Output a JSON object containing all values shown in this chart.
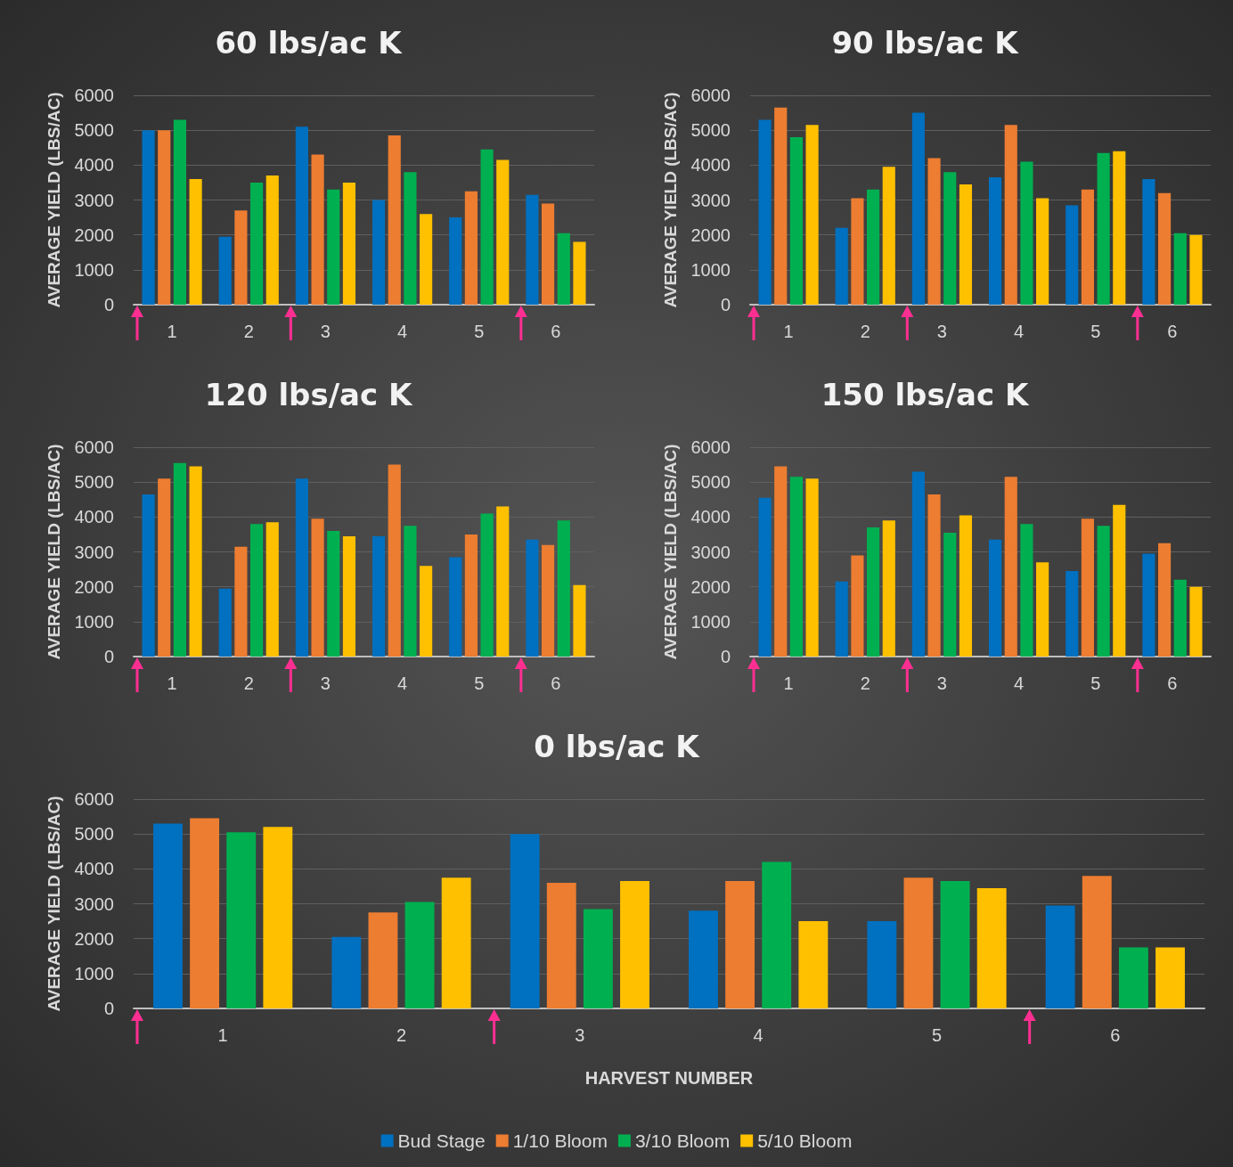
{
  "chart_data": [
    {
      "type": "bar",
      "title": "60 lbs/ac K",
      "ylabel": "AVERAGE YIELD (LBS/AC)",
      "categories": [
        "1",
        "2",
        "3",
        "4",
        "5",
        "6"
      ],
      "ylim": [
        0,
        6000
      ],
      "yticks": [
        0,
        1000,
        2000,
        3000,
        4000,
        5000,
        6000
      ],
      "grid": "y",
      "legend": false,
      "series": [
        {
          "color": "#0070c0",
          "values": [
            5000,
            1950,
            5100,
            3000,
            2500,
            3150
          ]
        },
        {
          "color": "#ed7d31",
          "values": [
            5000,
            2700,
            4300,
            4850,
            3250,
            2900
          ]
        },
        {
          "color": "#00b050",
          "values": [
            5300,
            3500,
            3300,
            3800,
            4450,
            2050
          ]
        },
        {
          "color": "#ffc000",
          "values": [
            3600,
            3700,
            3500,
            2600,
            4150,
            1800
          ]
        }
      ]
    },
    {
      "type": "bar",
      "title": "90 lbs/ac K",
      "ylabel": "AVERAGE YIELD (LBS/AC)",
      "categories": [
        "1",
        "2",
        "3",
        "4",
        "5",
        "6"
      ],
      "ylim": [
        0,
        6000
      ],
      "yticks": [
        0,
        1000,
        2000,
        3000,
        4000,
        5000,
        6000
      ],
      "grid": "y",
      "legend": false,
      "series": [
        {
          "color": "#0070c0",
          "values": [
            5300,
            2200,
            5500,
            3650,
            2850,
            3600
          ]
        },
        {
          "color": "#ed7d31",
          "values": [
            5650,
            3050,
            4200,
            5150,
            3300,
            3200
          ]
        },
        {
          "color": "#00b050",
          "values": [
            4800,
            3300,
            3800,
            4100,
            4350,
            2050
          ]
        },
        {
          "color": "#ffc000",
          "values": [
            5150,
            3950,
            3450,
            3050,
            4400,
            2000
          ]
        }
      ]
    },
    {
      "type": "bar",
      "title": "120 lbs/ac K",
      "ylabel": "AVERAGE YIELD (LBS/AC)",
      "categories": [
        "1",
        "2",
        "3",
        "4",
        "5",
        "6"
      ],
      "ylim": [
        0,
        6000
      ],
      "yticks": [
        0,
        1000,
        2000,
        3000,
        4000,
        5000,
        6000
      ],
      "grid": "y",
      "legend": false,
      "series": [
        {
          "color": "#0070c0",
          "values": [
            4650,
            1950,
            5100,
            3450,
            2850,
            3350
          ]
        },
        {
          "color": "#ed7d31",
          "values": [
            5100,
            3150,
            3950,
            5500,
            3500,
            3200
          ]
        },
        {
          "color": "#00b050",
          "values": [
            5550,
            3800,
            3600,
            3750,
            4100,
            3900
          ]
        },
        {
          "color": "#ffc000",
          "values": [
            5450,
            3850,
            3450,
            2600,
            4300,
            2050
          ]
        }
      ]
    },
    {
      "type": "bar",
      "title": "150 lbs/ac K",
      "ylabel": "AVERAGE YIELD (LBS/AC)",
      "categories": [
        "1",
        "2",
        "3",
        "4",
        "5",
        "6"
      ],
      "ylim": [
        0,
        6000
      ],
      "yticks": [
        0,
        1000,
        2000,
        3000,
        4000,
        5000,
        6000
      ],
      "grid": "y",
      "legend": false,
      "series": [
        {
          "color": "#0070c0",
          "values": [
            4550,
            2150,
            5300,
            3350,
            2450,
            2950
          ]
        },
        {
          "color": "#ed7d31",
          "values": [
            5450,
            2900,
            4650,
            5150,
            3950,
            3250
          ]
        },
        {
          "color": "#00b050",
          "values": [
            5150,
            3700,
            3550,
            3800,
            3750,
            2200
          ]
        },
        {
          "color": "#ffc000",
          "values": [
            5100,
            3900,
            4050,
            2700,
            4350,
            2000
          ]
        }
      ]
    },
    {
      "type": "bar",
      "title": "0 lbs/ac K",
      "ylabel": "AVERAGE YIELD (LBS/AC)",
      "xlabel": "HARVEST NUMBER",
      "categories": [
        "1",
        "2",
        "3",
        "4",
        "5",
        "6"
      ],
      "ylim": [
        0,
        6000
      ],
      "yticks": [
        0,
        1000,
        2000,
        3000,
        4000,
        5000,
        6000
      ],
      "grid": "y",
      "legend": "bottom",
      "series": [
        {
          "name": "Bud Stage",
          "color": "#0070c0",
          "values": [
            5300,
            2050,
            5000,
            2800,
            2500,
            2950
          ]
        },
        {
          "name": "1/10 Bloom",
          "color": "#ed7d31",
          "values": [
            5450,
            2750,
            3600,
            3650,
            3750,
            3800
          ]
        },
        {
          "name": "3/10 Bloom",
          "color": "#00b050",
          "values": [
            5050,
            3050,
            2850,
            4200,
            3650,
            1750
          ]
        },
        {
          "name": "5/10 Bloom",
          "color": "#ffc000",
          "values": [
            5200,
            3750,
            3650,
            2500,
            3450,
            1750
          ]
        }
      ]
    }
  ]
}
